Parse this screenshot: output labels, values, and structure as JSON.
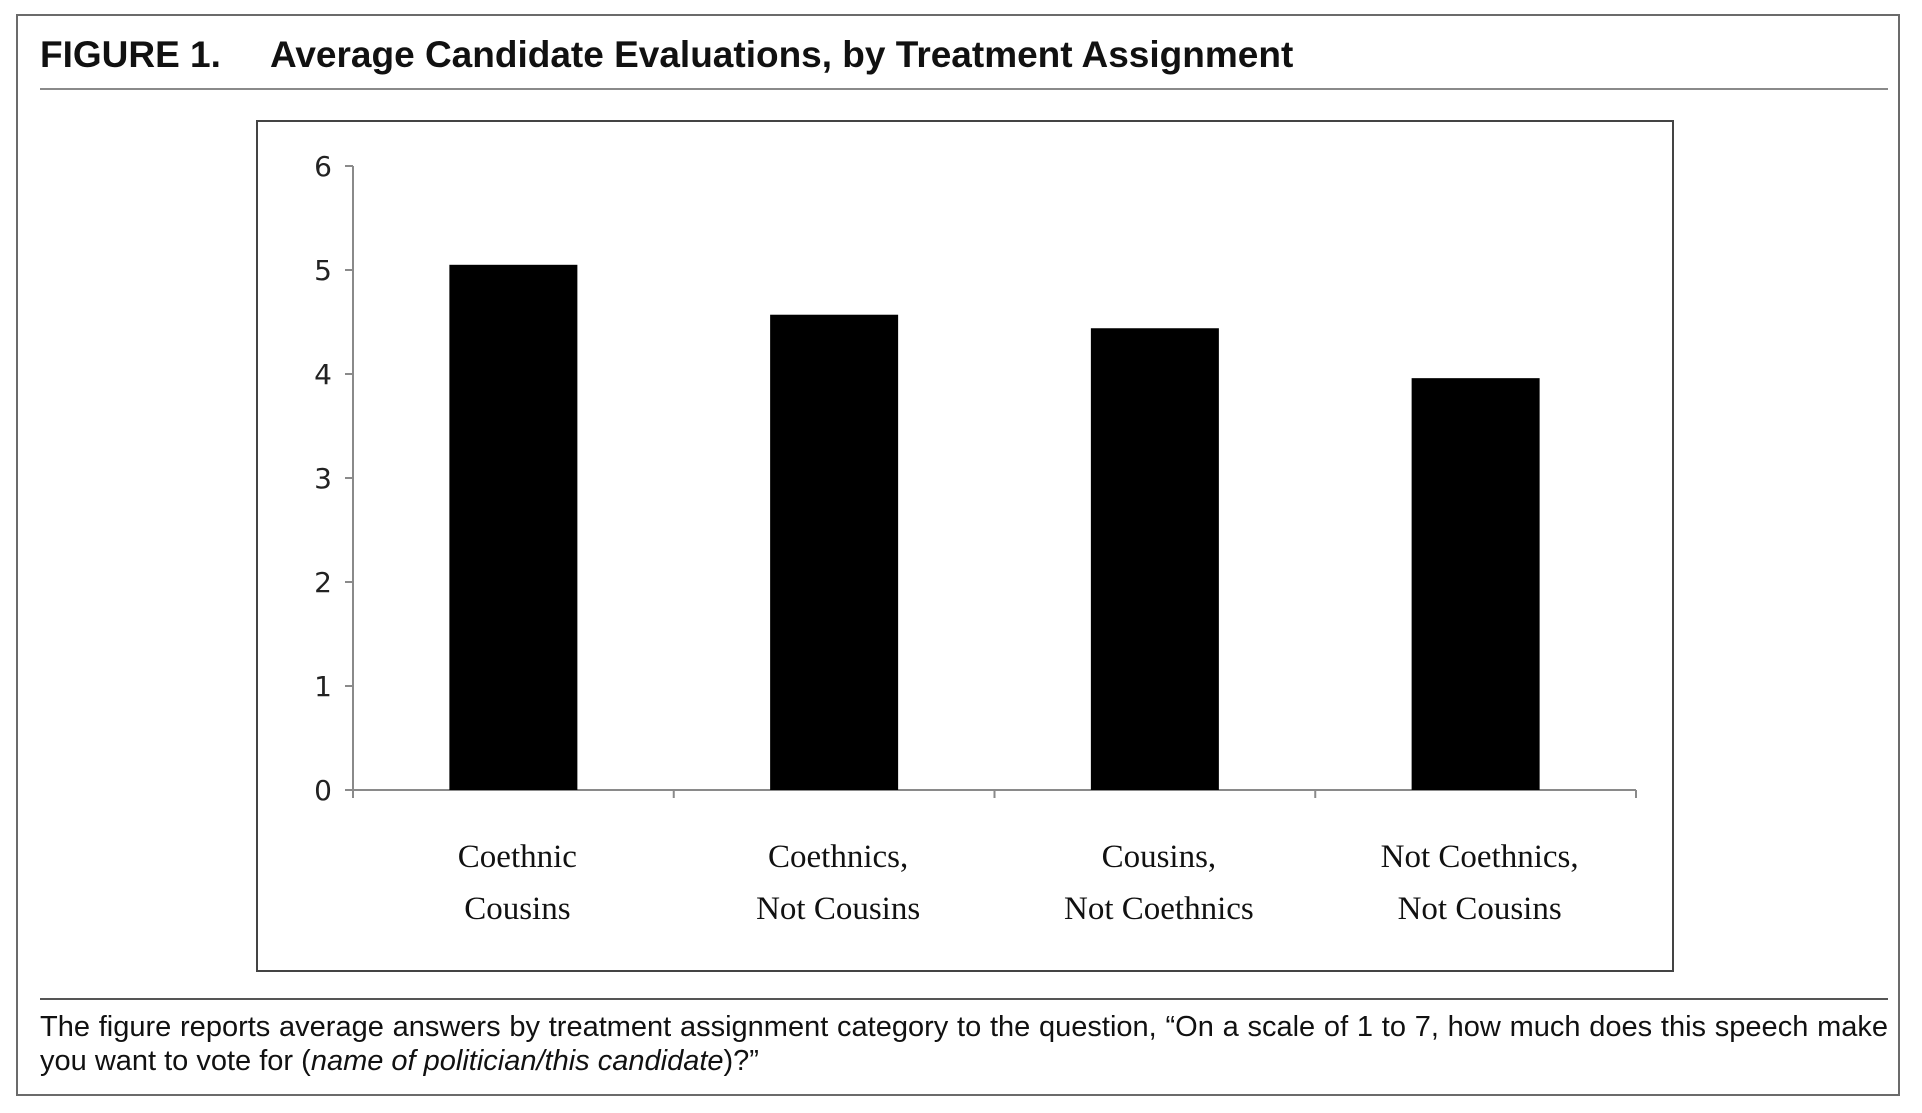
{
  "figure": {
    "number": "FIGURE 1.",
    "title": "Average Candidate Evaluations, by Treatment Assignment",
    "caption_text": "The figure reports average answers by treatment assignment category to the question, “On a scale of 1 to 7, how much does this speech make you want to vote for (",
    "caption_italic": "name of politician/this candidate",
    "caption_end": ")?”"
  },
  "chart_data": {
    "type": "bar",
    "categories": [
      [
        "Coethnic",
        "Cousins"
      ],
      [
        "Coethnics,",
        "Not Cousins"
      ],
      [
        "Cousins,",
        "Not Coethnics"
      ],
      [
        "Not Coethnics,",
        "Not Cousins"
      ]
    ],
    "values": [
      5.05,
      4.57,
      4.44,
      3.96
    ],
    "title": "",
    "xlabel": "",
    "ylabel": "",
    "ylim": [
      0,
      6
    ],
    "yticks": [
      "0",
      "1",
      "2",
      "3",
      "4",
      "5",
      "6"
    ],
    "grid": false,
    "legend": "none",
    "bar_color": "#000000"
  }
}
